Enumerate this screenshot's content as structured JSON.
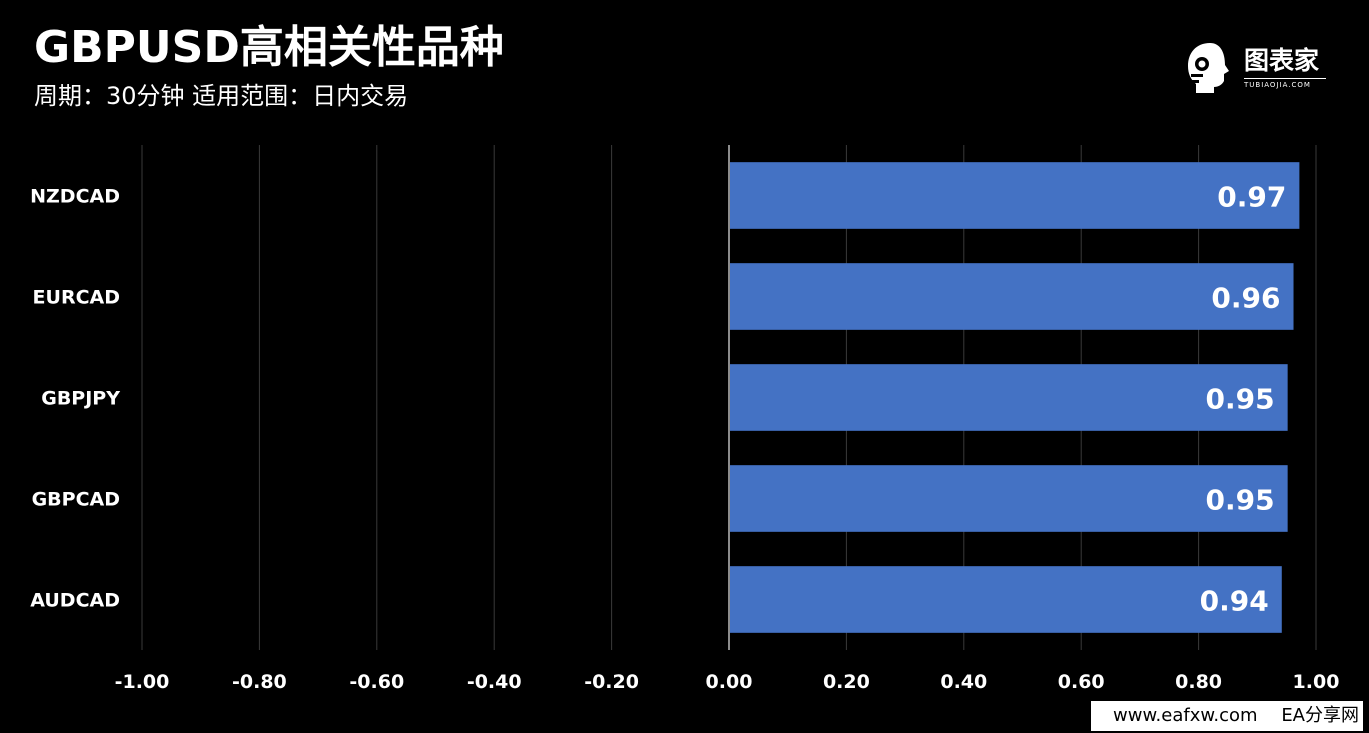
{
  "header": {
    "title": "GBPUSD高相关性品种",
    "subtitle": "周期：30分钟  适用范围：日内交易"
  },
  "logo": {
    "icon": "robot-head-icon",
    "text": "图表家",
    "subtext": "TUBIAOJIA.COM"
  },
  "footer": {
    "site": "www.eafxw.com",
    "name": "EA分享网"
  },
  "colors": {
    "background": "#000000",
    "bar": "#4472c4",
    "grid": "#3a3a3a",
    "zero_axis": "#8c8c8c",
    "text": "#ffffff"
  },
  "chart_data": {
    "type": "bar",
    "orientation": "horizontal",
    "categories": [
      "NZDCAD",
      "EURCAD",
      "GBPJPY",
      "GBPCAD",
      "AUDCAD"
    ],
    "values": [
      0.97,
      0.96,
      0.95,
      0.95,
      0.94
    ],
    "value_labels": [
      "0.97",
      "0.96",
      "0.95",
      "0.95",
      "0.94"
    ],
    "xlim": [
      -1.0,
      1.0
    ],
    "xticks": [
      -1.0,
      -0.8,
      -0.6,
      -0.4,
      -0.2,
      0.0,
      0.2,
      0.4,
      0.6,
      0.8,
      1.0
    ],
    "xtick_labels": [
      "-1.00",
      "-0.80",
      "-0.60",
      "-0.40",
      "-0.20",
      "0.00",
      "0.20",
      "0.40",
      "0.60",
      "0.80",
      "1.00"
    ],
    "grid": true,
    "legend": false,
    "title": "GBPUSD高相关性品种",
    "xlabel": "",
    "ylabel": ""
  }
}
